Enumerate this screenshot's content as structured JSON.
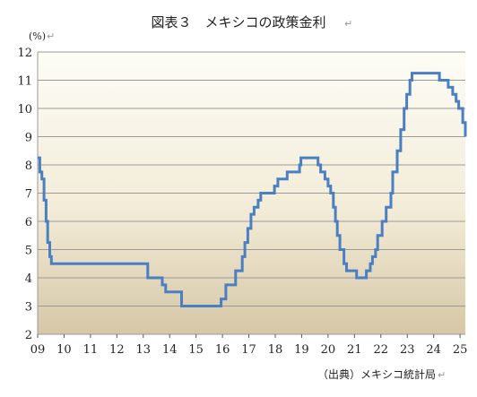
{
  "chart_data": {
    "type": "line",
    "title": "図表３　メキシコの政策金利",
    "ylabel_unit": "(%)",
    "source": "（出典）メキシコ統計局",
    "xlim": [
      2009.0,
      2025.2
    ],
    "ylim": [
      2,
      12
    ],
    "y_ticks": [
      2,
      3,
      4,
      5,
      6,
      7,
      8,
      9,
      10,
      11,
      12
    ],
    "x_ticks": [
      {
        "value": 2009,
        "label": "09"
      },
      {
        "value": 2010,
        "label": "10"
      },
      {
        "value": 2011,
        "label": "11"
      },
      {
        "value": 2012,
        "label": "12"
      },
      {
        "value": 2013,
        "label": "13"
      },
      {
        "value": 2014,
        "label": "14"
      },
      {
        "value": 2015,
        "label": "15"
      },
      {
        "value": 2016,
        "label": "16"
      },
      {
        "value": 2017,
        "label": "17"
      },
      {
        "value": 2018,
        "label": "18"
      },
      {
        "value": 2019,
        "label": "19"
      },
      {
        "value": 2020,
        "label": "20"
      },
      {
        "value": 2021,
        "label": "21"
      },
      {
        "value": 2022,
        "label": "22"
      },
      {
        "value": 2023,
        "label": "23"
      },
      {
        "value": 2024,
        "label": "24"
      },
      {
        "value": 2025,
        "label": "25"
      }
    ],
    "grid": "horizontal",
    "line_color": "#4a7fc1",
    "background_gradient": [
      "#fdfdf6",
      "#f3ecd8",
      "#d6c7a6"
    ],
    "series": [
      {
        "step": true,
        "points": [
          [
            2009.0,
            8.25
          ],
          [
            2009.08,
            7.75
          ],
          [
            2009.16,
            7.5
          ],
          [
            2009.24,
            6.75
          ],
          [
            2009.32,
            6.0
          ],
          [
            2009.38,
            5.25
          ],
          [
            2009.46,
            4.75
          ],
          [
            2009.52,
            4.5
          ],
          [
            2013.17,
            4.0
          ],
          [
            2013.72,
            3.75
          ],
          [
            2013.85,
            3.5
          ],
          [
            2014.45,
            3.0
          ],
          [
            2015.95,
            3.25
          ],
          [
            2016.13,
            3.75
          ],
          [
            2016.5,
            4.25
          ],
          [
            2016.75,
            4.75
          ],
          [
            2016.85,
            5.25
          ],
          [
            2016.96,
            5.75
          ],
          [
            2017.08,
            6.25
          ],
          [
            2017.2,
            6.5
          ],
          [
            2017.35,
            6.75
          ],
          [
            2017.45,
            7.0
          ],
          [
            2017.97,
            7.25
          ],
          [
            2018.1,
            7.5
          ],
          [
            2018.45,
            7.75
          ],
          [
            2018.92,
            8.0
          ],
          [
            2018.97,
            8.25
          ],
          [
            2019.62,
            8.0
          ],
          [
            2019.72,
            7.75
          ],
          [
            2019.88,
            7.5
          ],
          [
            2020.0,
            7.25
          ],
          [
            2020.1,
            7.0
          ],
          [
            2020.2,
            6.5
          ],
          [
            2020.28,
            6.0
          ],
          [
            2020.35,
            5.5
          ],
          [
            2020.45,
            5.0
          ],
          [
            2020.6,
            4.5
          ],
          [
            2020.7,
            4.25
          ],
          [
            2021.08,
            4.0
          ],
          [
            2021.45,
            4.25
          ],
          [
            2021.6,
            4.5
          ],
          [
            2021.68,
            4.75
          ],
          [
            2021.8,
            5.0
          ],
          [
            2021.88,
            5.5
          ],
          [
            2022.05,
            6.0
          ],
          [
            2022.2,
            6.5
          ],
          [
            2022.38,
            7.0
          ],
          [
            2022.45,
            7.75
          ],
          [
            2022.62,
            8.5
          ],
          [
            2022.75,
            9.25
          ],
          [
            2022.88,
            10.0
          ],
          [
            2022.98,
            10.5
          ],
          [
            2023.1,
            11.0
          ],
          [
            2023.18,
            11.25
          ],
          [
            2024.22,
            11.0
          ],
          [
            2024.55,
            10.75
          ],
          [
            2024.72,
            10.5
          ],
          [
            2024.85,
            10.25
          ],
          [
            2024.95,
            10.0
          ],
          [
            2025.1,
            9.5
          ],
          [
            2025.2,
            9.0
          ]
        ]
      }
    ]
  }
}
